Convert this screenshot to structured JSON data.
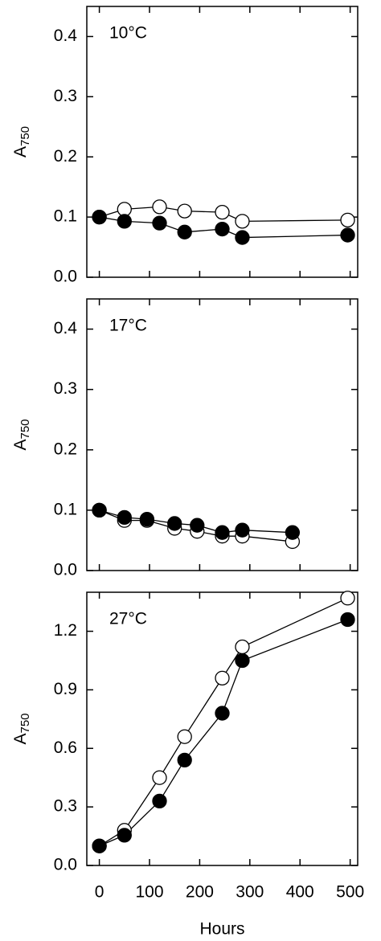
{
  "chart_data": [
    {
      "type": "line",
      "annotation": "10°C",
      "ylabel": "A",
      "ylabel_sub": "750",
      "xlim": [
        -25,
        515
      ],
      "xticks": [
        0,
        100,
        200,
        300,
        400,
        500
      ],
      "ylim": [
        0,
        0.45
      ],
      "yticks": [
        {
          "value": 0,
          "label": "0.0"
        },
        0.1,
        0.2,
        0.3,
        0.4
      ],
      "series": [
        {
          "color": "#000000",
          "fill": "#ffffff",
          "x": [
            0,
            50,
            120,
            170,
            245,
            285,
            495
          ],
          "values": [
            0.1,
            0.113,
            0.117,
            0.11,
            0.108,
            0.093,
            0.095
          ]
        },
        {
          "color": "#000000",
          "fill": "#000000",
          "x": [
            0,
            50,
            120,
            170,
            245,
            285,
            495
          ],
          "values": [
            0.1,
            0.093,
            0.09,
            0.075,
            0.08,
            0.066,
            0.07
          ]
        }
      ]
    },
    {
      "type": "line",
      "annotation": "17°C",
      "ylabel": "A",
      "ylabel_sub": "750",
      "xlim": [
        -25,
        515
      ],
      "xticks": [
        0,
        100,
        200,
        300,
        400,
        500
      ],
      "ylim": [
        0,
        0.45
      ],
      "yticks": [
        {
          "value": 0,
          "label": "0.0"
        },
        0.1,
        0.2,
        0.3,
        0.4
      ],
      "series": [
        {
          "color": "#000000",
          "fill": "#ffffff",
          "x": [
            0,
            50,
            95,
            150,
            195,
            245,
            285,
            385
          ],
          "values": [
            0.1,
            0.083,
            0.083,
            0.07,
            0.065,
            0.057,
            0.057,
            0.048
          ]
        },
        {
          "color": "#000000",
          "fill": "#000000",
          "x": [
            0,
            50,
            95,
            150,
            195,
            245,
            285,
            385
          ],
          "values": [
            0.1,
            0.088,
            0.085,
            0.078,
            0.075,
            0.063,
            0.067,
            0.063
          ]
        }
      ]
    },
    {
      "type": "line",
      "annotation": "27°C",
      "ylabel": "A",
      "ylabel_sub": "750",
      "xlabel": "Hours",
      "xlim": [
        -25,
        515
      ],
      "xticks": [
        0,
        100,
        200,
        300,
        400,
        500
      ],
      "ylim": [
        0,
        1.4
      ],
      "yticks": [
        {
          "value": 0,
          "label": "0.0"
        },
        0.3,
        0.6,
        0.9,
        1.2
      ],
      "series": [
        {
          "color": "#000000",
          "fill": "#ffffff",
          "x": [
            0,
            50,
            120,
            170,
            245,
            285,
            495
          ],
          "values": [
            0.1,
            0.18,
            0.45,
            0.66,
            0.96,
            1.12,
            1.37
          ]
        },
        {
          "color": "#000000",
          "fill": "#000000",
          "x": [
            0,
            50,
            120,
            170,
            245,
            285,
            495
          ],
          "values": [
            0.1,
            0.155,
            0.33,
            0.54,
            0.78,
            1.05,
            1.26
          ]
        }
      ]
    }
  ]
}
